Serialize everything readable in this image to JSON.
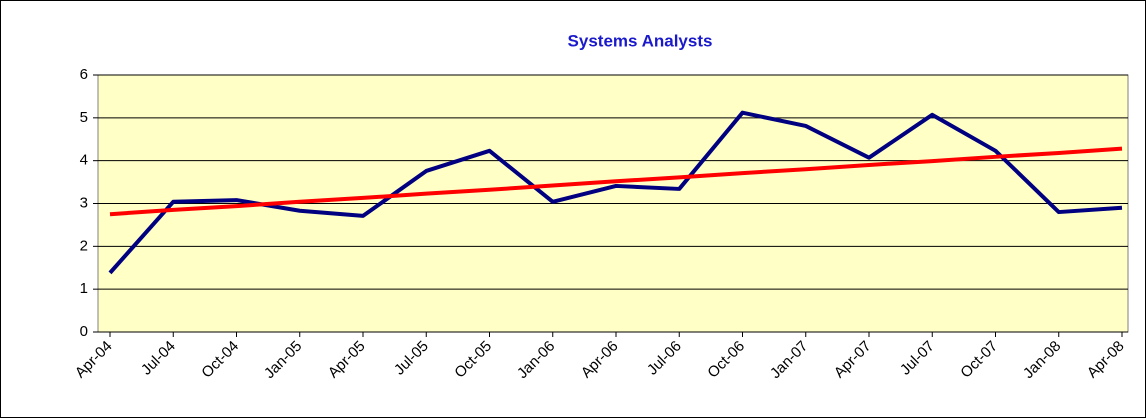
{
  "chart_data": {
    "type": "line",
    "title": "Systems Analysts",
    "categories": [
      "Apr-04",
      "Jul-04",
      "Oct-04",
      "Jan-05",
      "Apr-05",
      "Jul-05",
      "Oct-05",
      "Jan-06",
      "Apr-06",
      "Jul-06",
      "Oct-06",
      "Jan-07",
      "Apr-07",
      "Jul-07",
      "Oct-07",
      "Jan-08",
      "Apr-08"
    ],
    "series": [
      {
        "color": "#000080",
        "values": [
          1.38,
          3.04,
          3.08,
          2.83,
          2.71,
          3.76,
          4.23,
          3.04,
          3.41,
          3.34,
          5.12,
          4.81,
          4.07,
          5.07,
          4.23,
          2.8,
          2.9
        ]
      },
      {
        "color": "#ff0000",
        "values": [
          2.75,
          2.85,
          2.94,
          3.04,
          3.13,
          3.23,
          3.32,
          3.42,
          3.52,
          3.61,
          3.71,
          3.8,
          3.9,
          3.99,
          4.09,
          4.18,
          4.28
        ]
      }
    ],
    "ylim": [
      0,
      6
    ],
    "yticks": [
      0,
      1,
      2,
      3,
      4,
      5,
      6
    ],
    "grid": true
  }
}
